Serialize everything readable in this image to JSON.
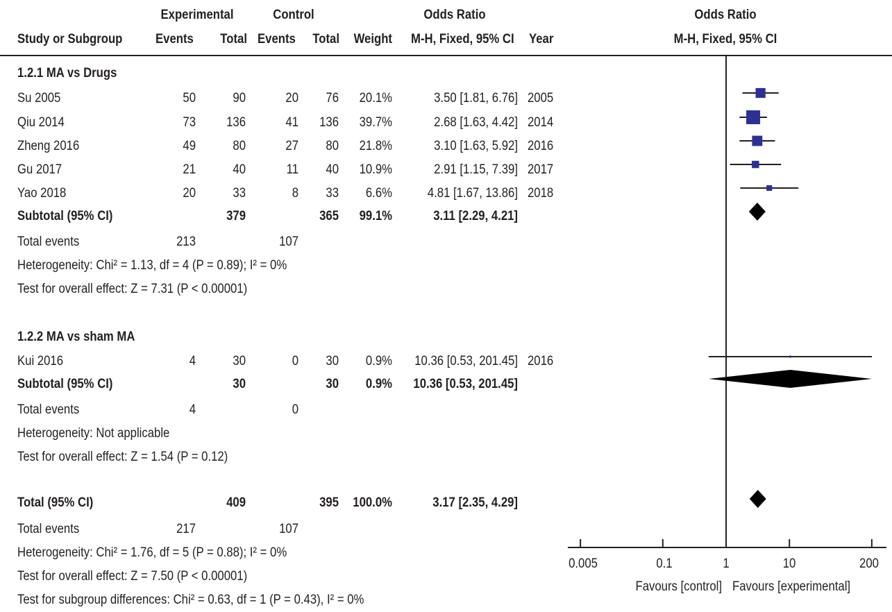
{
  "header": {
    "study_col": "Study or Subgroup",
    "exp_group": "Experimental",
    "ctrl_group": "Control",
    "events": "Events",
    "total": "Total",
    "weight": "Weight",
    "or_title": "Odds Ratio",
    "or_method": "M-H, Fixed, 95% CI",
    "year": "Year",
    "plot_title": "Odds Ratio",
    "plot_method": "M-H, Fixed, 95% CI"
  },
  "subgroups": [
    {
      "title": "1.2.1 MA vs Drugs",
      "studies": [
        {
          "name": "Su 2005",
          "e_ev": "50",
          "e_tot": "90",
          "c_ev": "20",
          "c_tot": "76",
          "weight": "20.1%",
          "ci": "3.50 [1.81, 6.76]",
          "year": "2005"
        },
        {
          "name": "Qiu 2014",
          "e_ev": "73",
          "e_tot": "136",
          "c_ev": "41",
          "c_tot": "136",
          "weight": "39.7%",
          "ci": "2.68 [1.63, 4.42]",
          "year": "2014"
        },
        {
          "name": "Zheng 2016",
          "e_ev": "49",
          "e_tot": "80",
          "c_ev": "27",
          "c_tot": "80",
          "weight": "21.8%",
          "ci": "3.10 [1.63, 5.92]",
          "year": "2016"
        },
        {
          "name": "Gu 2017",
          "e_ev": "21",
          "e_tot": "40",
          "c_ev": "11",
          "c_tot": "40",
          "weight": "10.9%",
          "ci": "2.91 [1.15, 7.39]",
          "year": "2017"
        },
        {
          "name": "Yao 2018",
          "e_ev": "20",
          "e_tot": "33",
          "c_ev": "8",
          "c_tot": "33",
          "weight": "6.6%",
          "ci": "4.81 [1.67, 13.86]",
          "year": "2018"
        }
      ],
      "subtotal": {
        "label": "Subtotal (95% CI)",
        "e_tot": "379",
        "c_tot": "365",
        "weight": "99.1%",
        "ci": "3.11 [2.29, 4.21]"
      },
      "total_events": {
        "label": "Total events",
        "e": "213",
        "c": "107"
      },
      "heterogeneity": "Heterogeneity: Chi² = 1.13, df = 4 (P = 0.89); I² = 0%",
      "overall": "Test for overall effect: Z = 7.31 (P < 0.00001)"
    },
    {
      "title": "1.2.2 MA vs sham MA",
      "studies": [
        {
          "name": "Kui 2016",
          "e_ev": "4",
          "e_tot": "30",
          "c_ev": "0",
          "c_tot": "30",
          "weight": "0.9%",
          "ci": "10.36 [0.53, 201.45]",
          "year": "2016"
        }
      ],
      "subtotal": {
        "label": "Subtotal (95% CI)",
        "e_tot": "30",
        "c_tot": "30",
        "weight": "0.9%",
        "ci": "10.36 [0.53, 201.45]"
      },
      "total_events": {
        "label": "Total events",
        "e": "4",
        "c": "0"
      },
      "heterogeneity": "Heterogeneity: Not applicable",
      "overall": "Test for overall effect: Z = 1.54 (P = 0.12)"
    }
  ],
  "total": {
    "label": "Total (95% CI)",
    "e_tot": "409",
    "c_tot": "395",
    "weight": "100.0%",
    "ci": "3.17 [2.35, 4.29]",
    "total_events": {
      "label": "Total events",
      "e": "217",
      "c": "107"
    },
    "heterogeneity": "Heterogeneity: Chi² = 1.76, df = 5 (P = 0.88); I² = 0%",
    "overall": "Test for overall effect: Z = 7.50 (P < 0.00001)",
    "subgroup_diff": "Test for subgroup differences: Chi² = 0.63, df = 1 (P = 0.43), I² = 0%"
  },
  "axis": {
    "ticks": [
      0.005,
      0.1,
      1,
      10,
      200
    ],
    "tick_labels": [
      "0.005",
      "0.1",
      "1",
      "10",
      "200"
    ],
    "favours_left": "Favours [control]",
    "favours_right": "Favours [experimental]"
  },
  "chart_data": {
    "type": "forest",
    "scale": "log",
    "xlim": [
      0.005,
      200
    ],
    "reference_line": 1,
    "studies": [
      {
        "name": "Su 2005",
        "or": 3.5,
        "lo": 1.81,
        "hi": 6.76,
        "weight": 20.1
      },
      {
        "name": "Qiu 2014",
        "or": 2.68,
        "lo": 1.63,
        "hi": 4.42,
        "weight": 39.7
      },
      {
        "name": "Zheng 2016",
        "or": 3.1,
        "lo": 1.63,
        "hi": 5.92,
        "weight": 21.8
      },
      {
        "name": "Gu 2017",
        "or": 2.91,
        "lo": 1.15,
        "hi": 7.39,
        "weight": 10.9
      },
      {
        "name": "Yao 2018",
        "or": 4.81,
        "lo": 1.67,
        "hi": 13.86,
        "weight": 6.6
      },
      {
        "name": "Kui 2016",
        "or": 10.36,
        "lo": 0.53,
        "hi": 201.45,
        "weight": 0.9
      }
    ],
    "summaries": [
      {
        "name": "Subtotal 1.2.1",
        "or": 3.11,
        "lo": 2.29,
        "hi": 4.21
      },
      {
        "name": "Subtotal 1.2.2",
        "or": 10.36,
        "lo": 0.53,
        "hi": 201.45
      },
      {
        "name": "Total",
        "or": 3.17,
        "lo": 2.35,
        "hi": 4.29
      }
    ],
    "colors": {
      "square": "#2e3192",
      "diamond": "#000000",
      "line": "#231f20"
    }
  }
}
